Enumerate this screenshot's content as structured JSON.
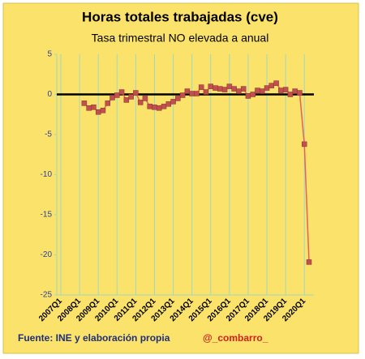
{
  "chart_data": {
    "type": "line",
    "title": "Horas totales trabajadas (cve)",
    "subtitle": "Tasa trimestral NO elevada a anual",
    "footer_source": "Fuente: INE y elaboración propia",
    "footer_author": "@_combarro_",
    "categories": [
      "2007Q1",
      null,
      null,
      null,
      "2008Q1",
      null,
      null,
      null,
      "2009Q1",
      null,
      null,
      null,
      "2010Q1",
      null,
      null,
      null,
      "2011Q1",
      null,
      null,
      null,
      "2012Q1",
      null,
      null,
      null,
      "2013Q1",
      null,
      null,
      null,
      "2014Q1",
      null,
      null,
      null,
      "2015Q1",
      null,
      null,
      null,
      "2016Q1",
      null,
      null,
      null,
      "2017Q1",
      null,
      null,
      null,
      "2018Q1",
      null,
      null,
      null,
      "2019Q1",
      null,
      null,
      null,
      "2020Q1",
      null
    ],
    "series": [
      {
        "name": "Horas totales trabajadas",
        "color": "#e8605a",
        "marker_color": "#c0504d",
        "values": [
          null,
          null,
          null,
          null,
          null,
          -1.1,
          -1.7,
          -1.6,
          -2.2,
          -2.0,
          -1.1,
          -0.4,
          -0.1,
          0.3,
          -0.7,
          -0.3,
          0.2,
          -1.0,
          -0.5,
          -1.5,
          -1.6,
          -1.7,
          -1.5,
          -1.2,
          -0.9,
          -0.5,
          -0.1,
          0.4,
          0.1,
          0.1,
          0.9,
          0.3,
          1.0,
          0.8,
          0.7,
          0.6,
          1.0,
          0.7,
          0.4,
          0.7,
          -0.2,
          0.0,
          0.5,
          0.4,
          0.8,
          1.1,
          1.4,
          0.5,
          0.6,
          0.0,
          0.4,
          0.2,
          -6.2,
          -20.9
        ]
      }
    ],
    "ylim": [
      -25,
      5
    ],
    "yticks": [
      -25,
      -20,
      -15,
      -10,
      -5,
      0,
      5
    ],
    "zero_line": true,
    "x_grid": true
  }
}
